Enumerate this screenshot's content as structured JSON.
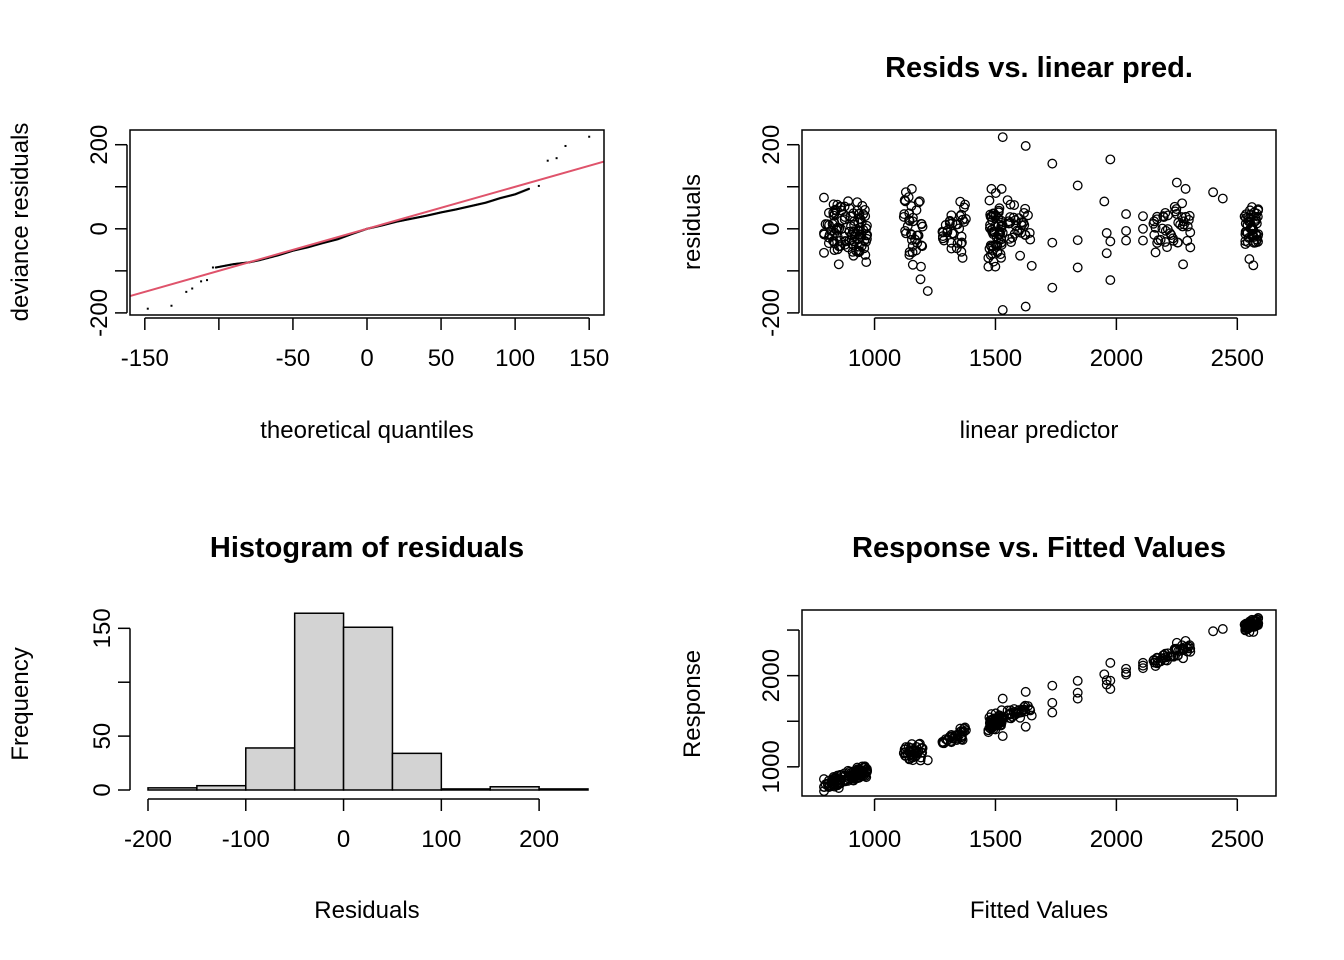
{
  "figure": {
    "layout": "2x2 grid of diagnostic plots (R gam.check style)",
    "background": "#ffffff"
  },
  "chart_data": [
    {
      "id": "qq",
      "type": "scatter",
      "title": "",
      "xlabel": "theoretical quantiles",
      "ylabel": "deviance residuals",
      "xlim": [
        -160,
        160
      ],
      "ylim": [
        -205,
        235
      ],
      "xticks": [
        -150,
        -100,
        -50,
        0,
        50,
        100,
        150
      ],
      "xtick_labels": [
        "-150",
        "",
        "-50",
        "0",
        "50",
        "100",
        "150"
      ],
      "yticks": [
        -200,
        -100,
        0,
        100,
        200
      ],
      "ytick_labels": [
        "-200",
        "",
        "0",
        "",
        "200"
      ],
      "reference_line": {
        "from": [
          -160,
          -160
        ],
        "to": [
          160,
          160
        ],
        "color": "#DF536B"
      },
      "point_style": "dot",
      "tail_points": [
        {
          "x": -148,
          "y": -190
        },
        {
          "x": -132,
          "y": -183
        },
        {
          "x": -122,
          "y": -150
        },
        {
          "x": -118,
          "y": -142
        },
        {
          "x": -112,
          "y": -125
        },
        {
          "x": -108,
          "y": -122
        },
        {
          "x": -104,
          "y": -92
        },
        {
          "x": 116,
          "y": 102
        },
        {
          "x": 122,
          "y": 162
        },
        {
          "x": 128,
          "y": 168
        },
        {
          "x": 134,
          "y": 197
        },
        {
          "x": 150,
          "y": 219
        }
      ],
      "body_curve": [
        [
          -102,
          -92
        ],
        [
          -90,
          -84
        ],
        [
          -80,
          -80
        ],
        [
          -72,
          -74
        ],
        [
          -60,
          -63
        ],
        [
          -50,
          -52
        ],
        [
          -40,
          -44
        ],
        [
          -30,
          -34
        ],
        [
          -20,
          -25
        ],
        [
          -10,
          -12
        ],
        [
          0,
          0
        ],
        [
          10,
          8
        ],
        [
          20,
          17
        ],
        [
          30,
          24
        ],
        [
          40,
          31
        ],
        [
          50,
          39
        ],
        [
          60,
          46
        ],
        [
          70,
          54
        ],
        [
          80,
          62
        ],
        [
          90,
          73
        ],
        [
          100,
          82
        ],
        [
          110,
          96
        ]
      ]
    },
    {
      "id": "resid-vs-linpred",
      "type": "scatter",
      "title": "Resids vs. linear pred.",
      "xlabel": "linear predictor",
      "ylabel": "residuals",
      "xlim": [
        700,
        2660
      ],
      "ylim": [
        -205,
        235
      ],
      "xticks": [
        1000,
        1500,
        2000,
        2500
      ],
      "xtick_labels": [
        "1000",
        "1500",
        "2000",
        "2500"
      ],
      "yticks": [
        -200,
        -100,
        0,
        100,
        200
      ],
      "ytick_labels": [
        "-200",
        "",
        "0",
        "",
        "200"
      ],
      "point_style": "open-circle",
      "clusters": [
        {
          "x_center": 880,
          "x_spread": 90,
          "y_sd": 35,
          "n": 110
        },
        {
          "x_center": 1160,
          "x_spread": 40,
          "y_sd": 45,
          "n": 40
        },
        {
          "x_center": 1330,
          "x_spread": 50,
          "y_sd": 30,
          "n": 35
        },
        {
          "x_center": 1500,
          "x_spread": 30,
          "y_sd": 45,
          "n": 60
        },
        {
          "x_center": 1600,
          "x_spread": 50,
          "y_sd": 25,
          "n": 30
        },
        {
          "x_center": 2230,
          "x_spread": 80,
          "y_sd": 35,
          "n": 45
        },
        {
          "x_center": 2560,
          "x_spread": 30,
          "y_sd": 30,
          "n": 50
        }
      ],
      "outliers": [
        {
          "x": 1530,
          "y": 218
        },
        {
          "x": 1625,
          "y": 197
        },
        {
          "x": 1735,
          "y": 155
        },
        {
          "x": 1975,
          "y": 165
        },
        {
          "x": 1840,
          "y": 103
        },
        {
          "x": 1950,
          "y": 65
        },
        {
          "x": 1190,
          "y": -120
        },
        {
          "x": 1220,
          "y": -148
        },
        {
          "x": 1735,
          "y": -140
        },
        {
          "x": 1840,
          "y": -92
        },
        {
          "x": 1975,
          "y": -122
        },
        {
          "x": 1530,
          "y": -193
        },
        {
          "x": 1625,
          "y": -185
        },
        {
          "x": 1650,
          "y": -88
        },
        {
          "x": 1960,
          "y": -58
        },
        {
          "x": 2250,
          "y": 110
        },
        {
          "x": 2400,
          "y": 87
        },
        {
          "x": 2440,
          "y": 72
        },
        {
          "x": 2040,
          "y": 35
        },
        {
          "x": 2040,
          "y": -5
        },
        {
          "x": 2040,
          "y": -28
        },
        {
          "x": 2110,
          "y": 30
        },
        {
          "x": 2110,
          "y": 0
        },
        {
          "x": 2110,
          "y": -28
        },
        {
          "x": 1735,
          "y": -33
        },
        {
          "x": 1840,
          "y": -27
        },
        {
          "x": 1975,
          "y": -30
        },
        {
          "x": 1960,
          "y": -10
        },
        {
          "x": 2550,
          "y": -72
        }
      ]
    },
    {
      "id": "histogram",
      "type": "bar",
      "title": "Histogram of residuals",
      "xlabel": "Residuals",
      "ylabel": "Frequency",
      "xlim": [
        -200,
        250
      ],
      "ylim": [
        0,
        167
      ],
      "xticks": [
        -200,
        -100,
        0,
        100,
        200
      ],
      "xtick_labels": [
        "-200",
        "-100",
        "0",
        "100",
        "200"
      ],
      "yticks": [
        0,
        50,
        100,
        150
      ],
      "ytick_labels": [
        "0",
        "50",
        "",
        "150"
      ],
      "bins": [
        -200,
        -150,
        -100,
        -50,
        0,
        50,
        100,
        150,
        200,
        250
      ],
      "values": [
        2,
        4,
        39,
        164,
        151,
        34,
        1,
        3,
        1
      ],
      "fill": "#D3D3D3"
    },
    {
      "id": "response-vs-fitted",
      "type": "scatter",
      "title": "Response vs. Fitted Values",
      "xlabel": "Fitted Values",
      "ylabel": "Response",
      "xlim": [
        700,
        2660
      ],
      "ylim": [
        680,
        2720
      ],
      "xticks": [
        1000,
        1500,
        2000,
        2500
      ],
      "xtick_labels": [
        "1000",
        "1500",
        "2000",
        "2500"
      ],
      "yticks": [
        1000,
        1500,
        2000,
        2500
      ],
      "ytick_labels": [
        "1000",
        "",
        "2000",
        ""
      ],
      "point_style": "open-circle",
      "relationship": "response = fitted + residual (from resid-vs-linpred panel)"
    }
  ]
}
